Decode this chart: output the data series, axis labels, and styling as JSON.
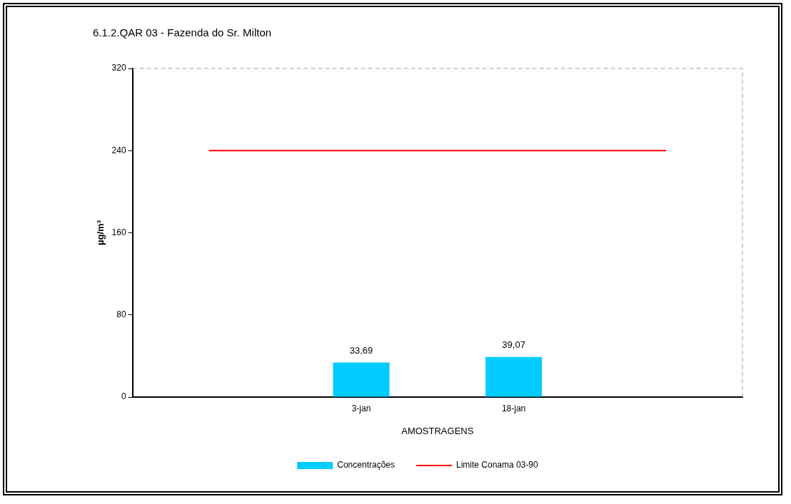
{
  "chart_data": {
    "type": "bar",
    "title": "6.1.2.QAR 03 - Fazenda do Sr. Milton",
    "xlabel": "AMOSTRAGENS",
    "ylabel": "µg/m³",
    "categories": [
      null,
      "3-jan",
      "18-jan",
      null
    ],
    "series": [
      {
        "name": "Concentrações",
        "color": "#00ccff",
        "values": [
          null,
          33.69,
          39.07,
          null
        ],
        "value_labels": [
          null,
          "33,69",
          "39,07",
          null
        ]
      },
      {
        "name": "Limite Conama 03-90",
        "type": "line",
        "color": "#ff0000",
        "values": [
          240,
          240,
          240,
          240
        ]
      }
    ],
    "ylim": [
      0,
      320
    ],
    "yticks": [
      0,
      80,
      160,
      240,
      320
    ],
    "grid": false,
    "legend": "bottom",
    "marker": "none"
  }
}
